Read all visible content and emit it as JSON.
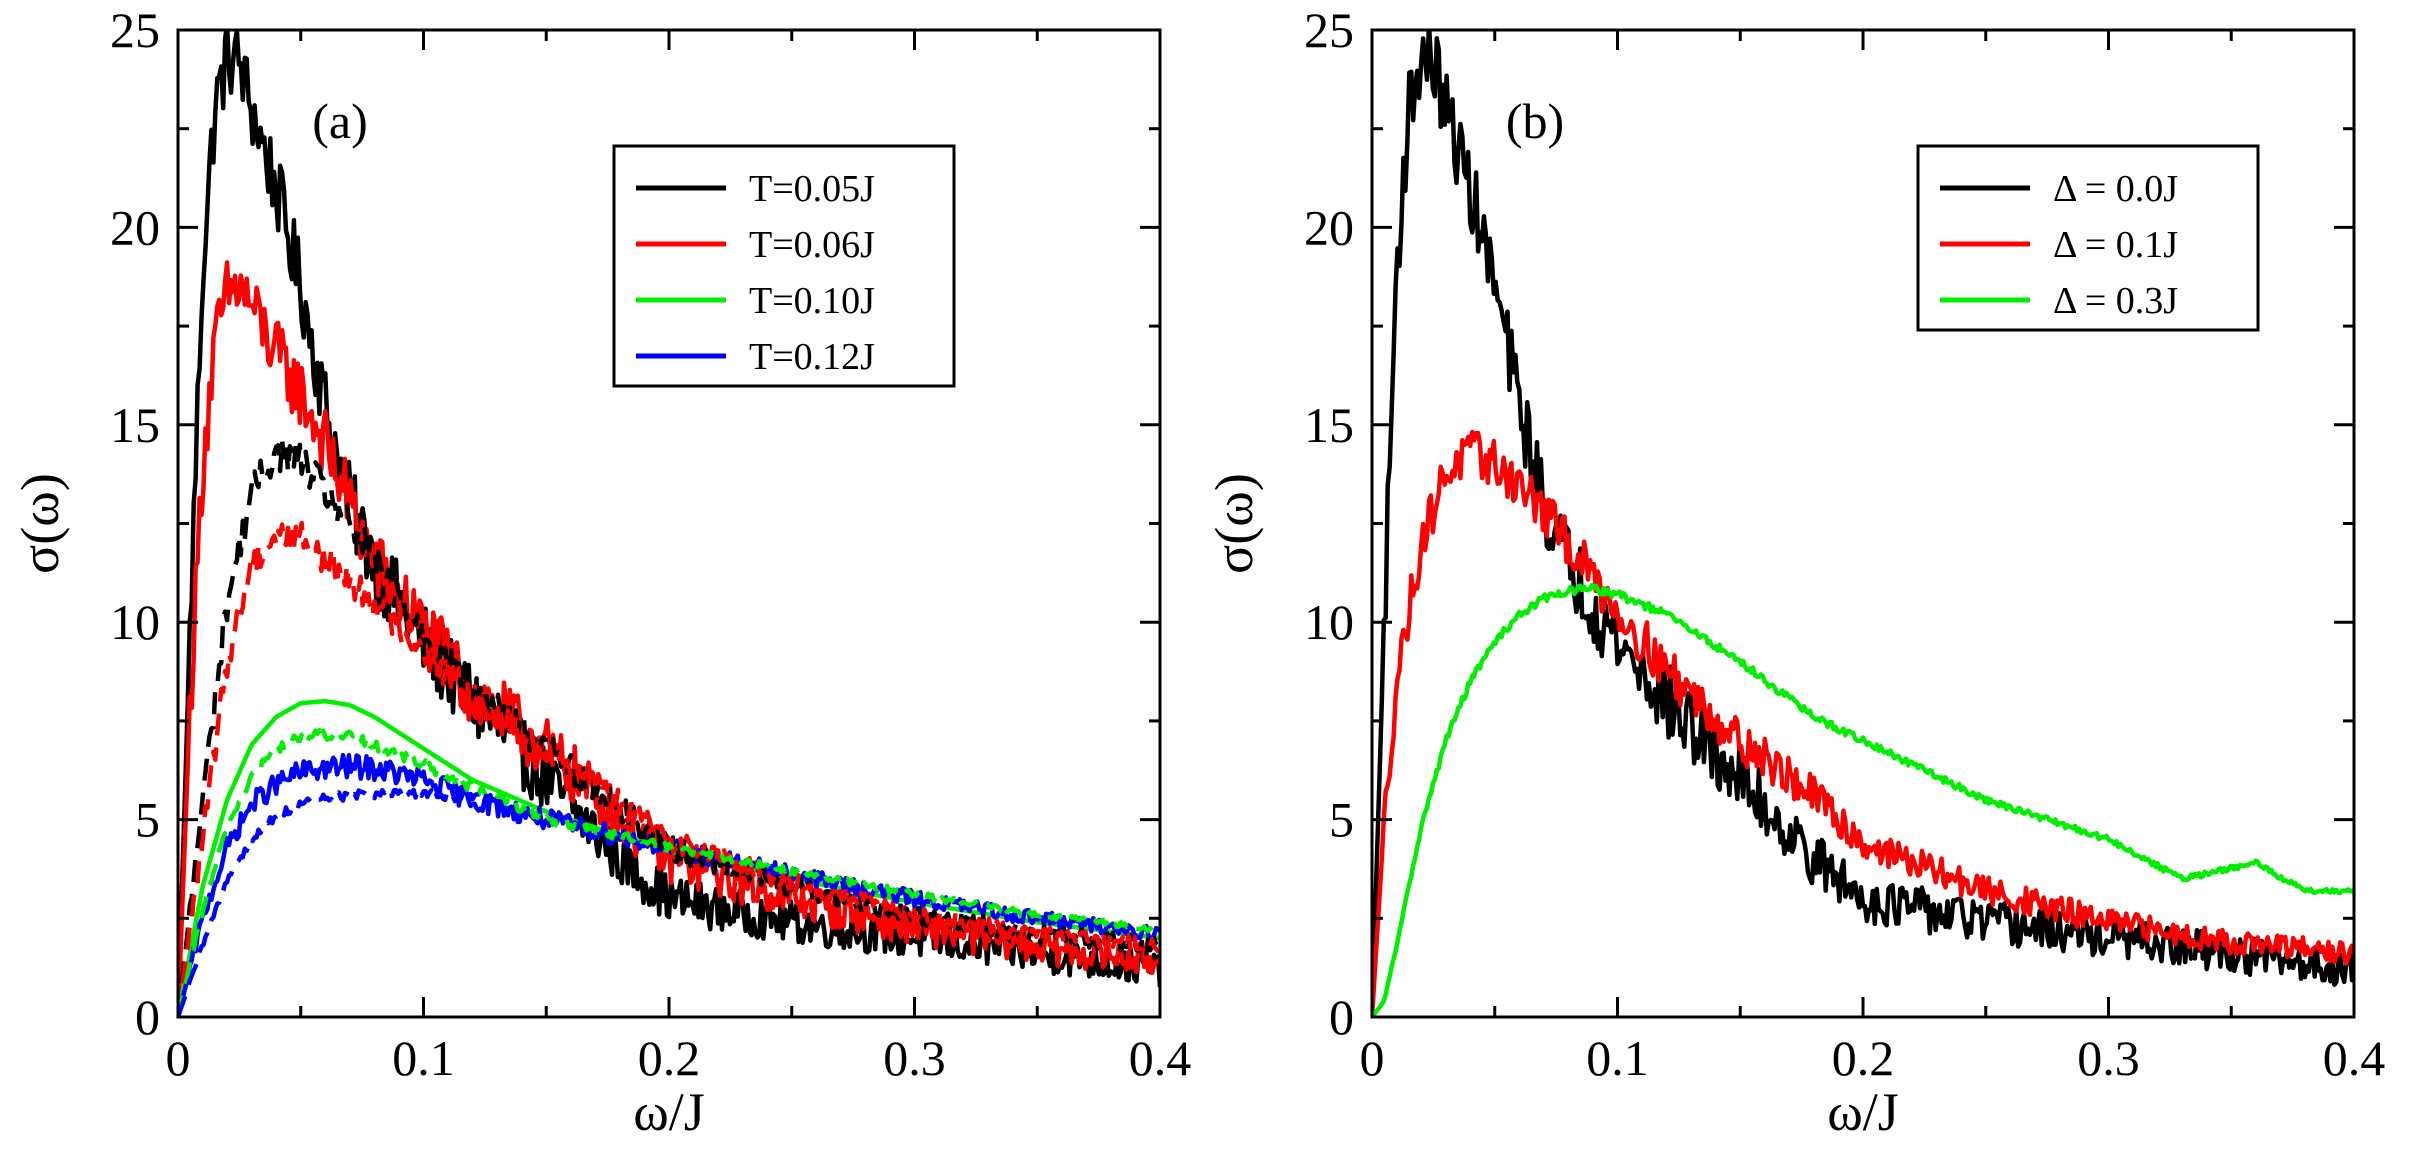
{
  "chart_data": [
    {
      "type": "line",
      "panel_label": "(a)",
      "xlabel": "ω/J",
      "ylabel": "σ(ω)",
      "xlim": [
        0,
        0.4
      ],
      "ylim": [
        0,
        25
      ],
      "xticks": [
        "0",
        "0.1",
        "0.2",
        "0.3",
        "0.4"
      ],
      "yticks": [
        "0",
        "5",
        "10",
        "15",
        "20",
        "25"
      ],
      "legend_position": "top-right",
      "series": [
        {
          "name": "T=0.05J",
          "color": "#000000",
          "style": "solid",
          "noise": 1.0,
          "x": [
            0,
            0.005,
            0.01,
            0.015,
            0.02,
            0.025,
            0.03,
            0.04,
            0.05,
            0.06,
            0.07,
            0.08,
            0.1,
            0.12,
            0.15,
            0.18,
            0.2,
            0.25,
            0.3,
            0.35,
            0.4
          ],
          "y": [
            0,
            10,
            19,
            23,
            24.3,
            24.2,
            23,
            21,
            18.5,
            15.5,
            13,
            11.5,
            9.5,
            8,
            6,
            4,
            3,
            2.4,
            2.0,
            1.6,
            1.2
          ]
        },
        {
          "name": "T=0.06J",
          "color": "#ff0000",
          "style": "solid",
          "noise": 0.9,
          "x": [
            0,
            0.005,
            0.01,
            0.015,
            0.02,
            0.025,
            0.03,
            0.04,
            0.05,
            0.06,
            0.08,
            0.1,
            0.12,
            0.15,
            0.18,
            0.2,
            0.25,
            0.3,
            0.35,
            0.4
          ],
          "y": [
            0,
            8,
            14,
            17,
            18.3,
            18.5,
            18,
            16.8,
            15.8,
            14.5,
            11.5,
            9.8,
            8.2,
            6.8,
            5.0,
            4.0,
            3.0,
            2.3,
            1.8,
            1.4
          ]
        },
        {
          "name": "T=0.10J",
          "color": "#00ee00",
          "style": "solid",
          "noise": 0,
          "x": [
            0,
            0.01,
            0.02,
            0.03,
            0.04,
            0.05,
            0.06,
            0.07,
            0.08,
            0.1,
            0.12,
            0.15,
            0.2,
            0.25,
            0.3,
            0.35,
            0.4
          ],
          "y": [
            0,
            3.3,
            5.5,
            6.9,
            7.6,
            7.95,
            8.0,
            7.9,
            7.6,
            6.8,
            6.0,
            5.2,
            4.2,
            3.5,
            2.9,
            2.4,
            2.0
          ]
        },
        {
          "name": "T=0.12J",
          "color": "#0000ff",
          "style": "solid",
          "noise": 0.35,
          "x": [
            0,
            0.01,
            0.02,
            0.03,
            0.04,
            0.05,
            0.06,
            0.07,
            0.08,
            0.1,
            0.12,
            0.15,
            0.2,
            0.25,
            0.3,
            0.35,
            0.4
          ],
          "y": [
            0,
            2.5,
            4.3,
            5.4,
            5.9,
            6.2,
            6.3,
            6.35,
            6.3,
            6.0,
            5.5,
            5.0,
            4.3,
            3.6,
            3.0,
            2.5,
            2.1
          ]
        },
        {
          "name": "",
          "color": "#000000",
          "style": "dashed",
          "noise": 0.45,
          "x": [
            0,
            0.01,
            0.02,
            0.03,
            0.04,
            0.05,
            0.06,
            0.08,
            0.1,
            0.12,
            0.15,
            0.2,
            0.25,
            0.3,
            0.35,
            0.4
          ],
          "y": [
            0,
            5.5,
            10.5,
            13.3,
            14.3,
            14.1,
            13.3,
            11.6,
            9.8,
            8.3,
            6.8,
            4.3,
            3.3,
            2.6,
            2.1,
            1.8
          ]
        },
        {
          "name": "",
          "color": "#ff0000",
          "style": "dashed",
          "noise": 0.4,
          "x": [
            0,
            0.01,
            0.02,
            0.03,
            0.04,
            0.05,
            0.06,
            0.08,
            0.1,
            0.12,
            0.15,
            0.2,
            0.25,
            0.3,
            0.35,
            0.4
          ],
          "y": [
            0,
            4.5,
            9.0,
            11.5,
            12.2,
            12.2,
            11.6,
            10.5,
            9.3,
            8.0,
            6.8,
            4.5,
            3.4,
            2.6,
            2.1,
            1.8
          ]
        },
        {
          "name": "",
          "color": "#00ee00",
          "style": "dashed",
          "noise": 0.15,
          "x": [
            0,
            0.01,
            0.02,
            0.03,
            0.04,
            0.05,
            0.06,
            0.07,
            0.08,
            0.1,
            0.12,
            0.15,
            0.2,
            0.25,
            0.3,
            0.35,
            0.4
          ],
          "y": [
            0,
            2.7,
            4.8,
            6.1,
            6.8,
            7.1,
            7.15,
            7.1,
            6.9,
            6.4,
            5.8,
            5.0,
            4.3,
            3.7,
            3.1,
            2.6,
            2.2
          ]
        },
        {
          "name": "",
          "color": "#0000ff",
          "style": "dashed",
          "noise": 0.15,
          "x": [
            0,
            0.01,
            0.02,
            0.03,
            0.04,
            0.05,
            0.06,
            0.08,
            0.1,
            0.12,
            0.135
          ],
          "y": [
            0,
            1.8,
            3.5,
            4.5,
            5.1,
            5.4,
            5.55,
            5.65,
            5.65,
            5.55,
            5.4
          ]
        }
      ]
    },
    {
      "type": "line",
      "panel_label": "(b)",
      "xlabel": "ω/J",
      "ylabel": "σ(ω)",
      "xlim": [
        0,
        0.4
      ],
      "ylim": [
        0,
        25
      ],
      "xticks": [
        "0",
        "0.1",
        "0.2",
        "0.3",
        "0.4"
      ],
      "yticks": [
        "0",
        "5",
        "10",
        "15",
        "20",
        "25"
      ],
      "legend_position": "top-right",
      "series": [
        {
          "name": "Δ = 0.0J",
          "color": "#000000",
          "style": "solid",
          "noise": 1.0,
          "x": [
            0,
            0.005,
            0.01,
            0.015,
            0.02,
            0.025,
            0.03,
            0.04,
            0.05,
            0.06,
            0.07,
            0.08,
            0.1,
            0.12,
            0.15,
            0.18,
            0.2,
            0.25,
            0.3,
            0.35,
            0.4
          ],
          "y": [
            0,
            10,
            19,
            23,
            24.3,
            24.2,
            23,
            21,
            18.5,
            15.5,
            13,
            11.5,
            9.5,
            8,
            6,
            4,
            3,
            2.4,
            2.0,
            1.6,
            1.2
          ]
        },
        {
          "name": "Δ = 0.1J",
          "color": "#ff0000",
          "style": "solid",
          "noise": 0.6,
          "x": [
            0,
            0.005,
            0.01,
            0.02,
            0.03,
            0.04,
            0.05,
            0.06,
            0.07,
            0.08,
            0.1,
            0.12,
            0.15,
            0.18,
            0.2,
            0.25,
            0.3,
            0.35,
            0.4
          ],
          "y": [
            0,
            5,
            8.5,
            12.0,
            13.8,
            14.3,
            14.0,
            13.5,
            12.8,
            12.0,
            10.3,
            8.8,
            7.0,
            5.6,
            4.4,
            3.2,
            2.4,
            1.9,
            1.6
          ]
        },
        {
          "name": "Δ = 0.3J",
          "color": "#00ee00",
          "style": "solid",
          "noise": 0.1,
          "x": [
            0,
            0.005,
            0.01,
            0.02,
            0.03,
            0.04,
            0.05,
            0.06,
            0.07,
            0.08,
            0.09,
            0.1,
            0.12,
            0.15,
            0.18,
            0.2,
            0.25,
            0.3,
            0.33,
            0.36,
            0.38,
            0.4
          ],
          "y": [
            0,
            0.4,
            1.8,
            4.8,
            7.0,
            8.5,
            9.5,
            10.2,
            10.6,
            10.8,
            10.85,
            10.7,
            10.2,
            9.0,
            7.6,
            7.0,
            5.5,
            4.5,
            3.5,
            3.9,
            3.2,
            3.2
          ]
        }
      ]
    }
  ]
}
